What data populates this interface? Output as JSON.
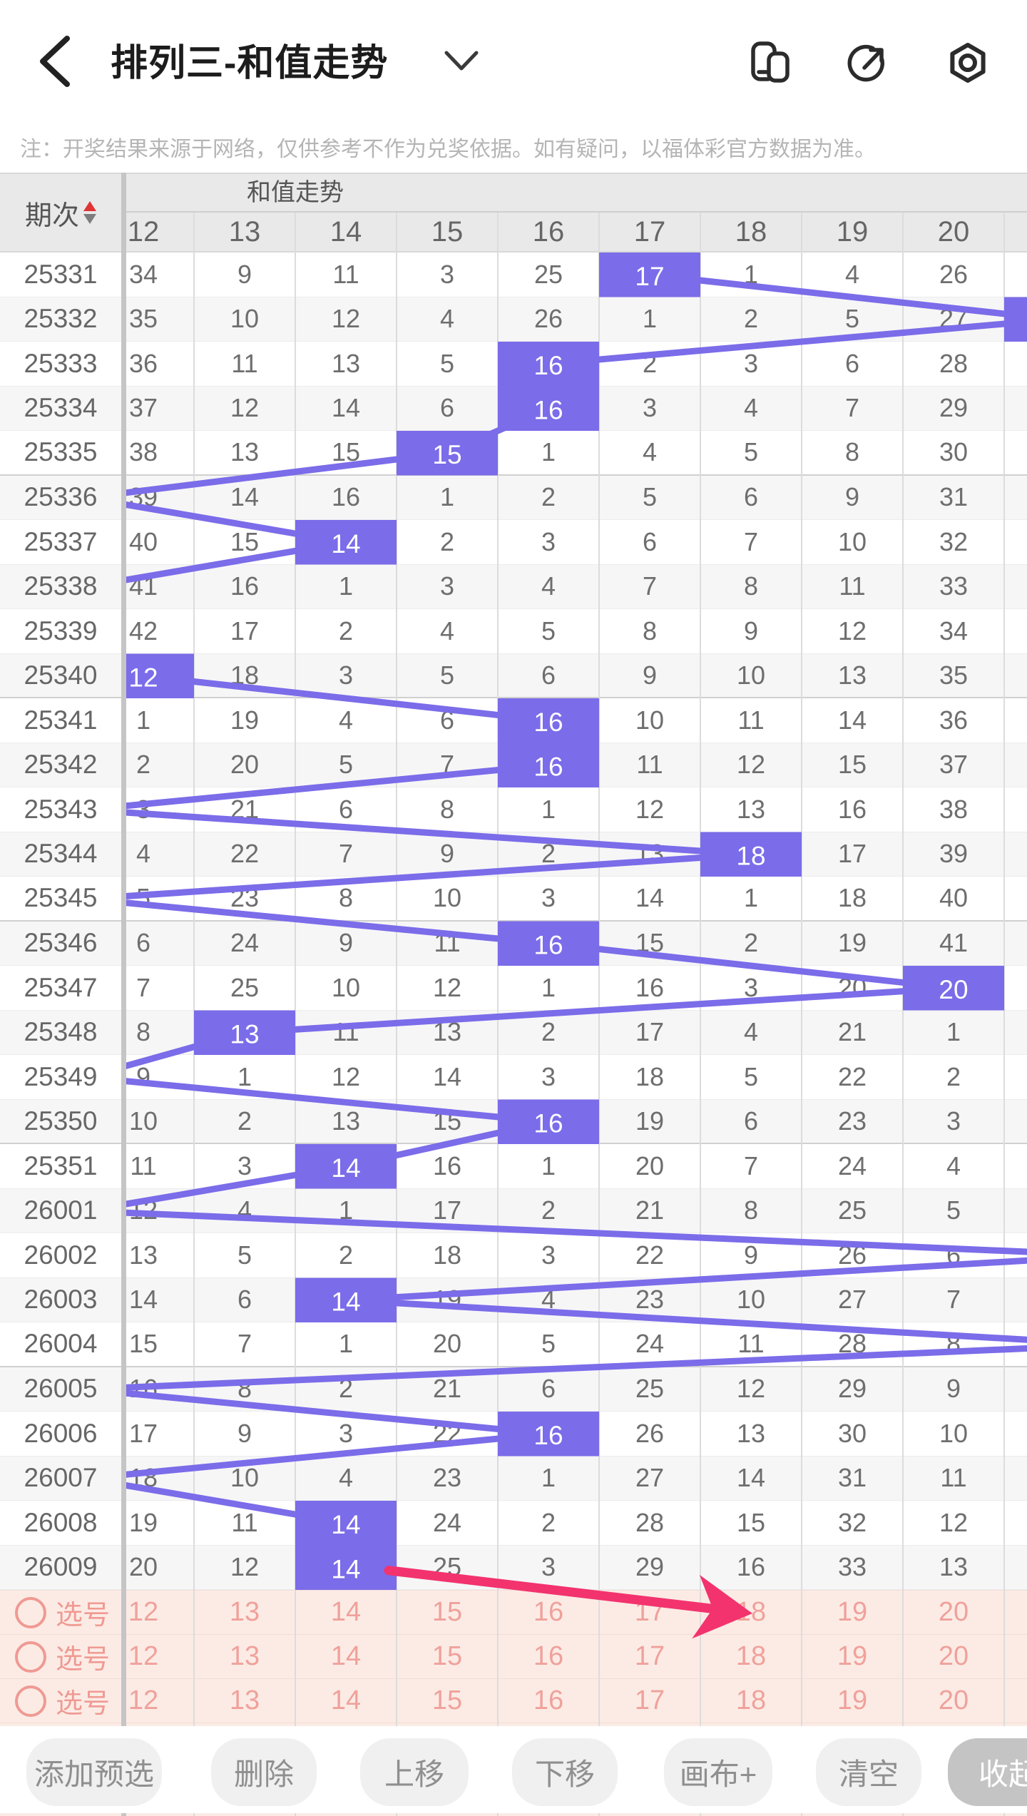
{
  "header": {
    "title": "排列三-和值走势",
    "icons": [
      "back-icon",
      "chevron-down-icon",
      "window-switch-icon",
      "share-icon",
      "settings-icon"
    ]
  },
  "notice": "注：开奖结果来源于网络，仅供参考不作为兑奖依据。如有疑问，以福体彩官方数据为准。",
  "table": {
    "period_label": "期次",
    "trend_label": "和值走势",
    "columns": [
      "12",
      "13",
      "14",
      "15",
      "16",
      "17",
      "18",
      "19",
      "20"
    ],
    "col_start": 12,
    "rows": [
      {
        "period": "25331",
        "cells": [
          34,
          9,
          11,
          3,
          25,
          17,
          1,
          4,
          26
        ],
        "sum": 17
      },
      {
        "period": "25332",
        "cells": [
          35,
          10,
          12,
          4,
          26,
          1,
          2,
          5,
          27
        ],
        "sum": 21
      },
      {
        "period": "25333",
        "cells": [
          36,
          11,
          13,
          5,
          16,
          2,
          3,
          6,
          28
        ],
        "sum": 16
      },
      {
        "period": "25334",
        "cells": [
          37,
          12,
          14,
          6,
          16,
          3,
          4,
          7,
          29
        ],
        "sum": 16
      },
      {
        "period": "25335",
        "cells": [
          38,
          13,
          15,
          15,
          1,
          4,
          5,
          8,
          30
        ],
        "sum": 15
      },
      {
        "period": "25336",
        "cells": [
          39,
          14,
          16,
          1,
          2,
          5,
          6,
          9,
          31
        ],
        "sum": "below-range"
      },
      {
        "period": "25337",
        "cells": [
          40,
          15,
          14,
          2,
          3,
          6,
          7,
          10,
          32
        ],
        "sum": 14
      },
      {
        "period": "25338",
        "cells": [
          41,
          16,
          1,
          3,
          4,
          7,
          8,
          11,
          33
        ],
        "sum": "below-range"
      },
      {
        "period": "25339",
        "cells": [
          42,
          17,
          2,
          4,
          5,
          8,
          9,
          12,
          34
        ],
        "sum": "below-range"
      },
      {
        "period": "25340",
        "cells": [
          12,
          18,
          3,
          5,
          6,
          9,
          10,
          13,
          35
        ],
        "sum": 12
      },
      {
        "period": "25341",
        "cells": [
          1,
          19,
          4,
          6,
          16,
          10,
          11,
          14,
          36
        ],
        "sum": 16
      },
      {
        "period": "25342",
        "cells": [
          2,
          20,
          5,
          7,
          16,
          11,
          12,
          15,
          37
        ],
        "sum": 16
      },
      {
        "period": "25343",
        "cells": [
          3,
          21,
          6,
          8,
          1,
          12,
          13,
          16,
          38
        ],
        "sum": "below-range"
      },
      {
        "period": "25344",
        "cells": [
          4,
          22,
          7,
          9,
          2,
          13,
          18,
          17,
          39
        ],
        "sum": 18
      },
      {
        "period": "25345",
        "cells": [
          5,
          23,
          8,
          10,
          3,
          14,
          1,
          18,
          40
        ],
        "sum": "below-range"
      },
      {
        "period": "25346",
        "cells": [
          6,
          24,
          9,
          11,
          16,
          15,
          2,
          19,
          41
        ],
        "sum": 16
      },
      {
        "period": "25347",
        "cells": [
          7,
          25,
          10,
          12,
          1,
          16,
          3,
          20,
          20
        ],
        "sum": 20
      },
      {
        "period": "25348",
        "cells": [
          8,
          13,
          11,
          13,
          2,
          17,
          4,
          21,
          1
        ],
        "sum": 13
      },
      {
        "period": "25349",
        "cells": [
          9,
          1,
          12,
          14,
          3,
          18,
          5,
          22,
          2
        ],
        "sum": "below-range"
      },
      {
        "period": "25350",
        "cells": [
          10,
          2,
          13,
          15,
          16,
          19,
          6,
          23,
          3
        ],
        "sum": 16
      },
      {
        "period": "25351",
        "cells": [
          11,
          3,
          14,
          16,
          1,
          20,
          7,
          24,
          4
        ],
        "sum": 14
      },
      {
        "period": "26001",
        "cells": [
          12,
          4,
          1,
          17,
          2,
          21,
          8,
          25,
          5
        ],
        "sum": "below-range"
      },
      {
        "period": "26002",
        "cells": [
          13,
          5,
          2,
          18,
          3,
          22,
          9,
          26,
          6
        ],
        "sum": "above-range"
      },
      {
        "period": "26003",
        "cells": [
          14,
          6,
          14,
          19,
          4,
          23,
          10,
          27,
          7
        ],
        "sum": 14
      },
      {
        "period": "26004",
        "cells": [
          15,
          7,
          1,
          20,
          5,
          24,
          11,
          28,
          8
        ],
        "sum": "above-range"
      },
      {
        "period": "26005",
        "cells": [
          16,
          8,
          2,
          21,
          6,
          25,
          12,
          29,
          9
        ],
        "sum": "below-range"
      },
      {
        "period": "26006",
        "cells": [
          17,
          9,
          3,
          22,
          16,
          26,
          13,
          30,
          10
        ],
        "sum": 16
      },
      {
        "period": "26007",
        "cells": [
          18,
          10,
          4,
          23,
          1,
          27,
          14,
          31,
          11
        ],
        "sum": "below-range"
      },
      {
        "period": "26008",
        "cells": [
          19,
          11,
          14,
          24,
          2,
          28,
          15,
          32,
          12
        ],
        "sum": 14
      },
      {
        "period": "26009",
        "cells": [
          20,
          12,
          14,
          25,
          3,
          29,
          16,
          33,
          13
        ],
        "sum": 14
      }
    ]
  },
  "selection_rows": [
    {
      "label": "选号",
      "values": [
        "12",
        "13",
        "14",
        "15",
        "16",
        "17",
        "18",
        "19",
        "20"
      ]
    },
    {
      "label": "选号",
      "values": [
        "12",
        "13",
        "14",
        "15",
        "16",
        "17",
        "18",
        "19",
        "20"
      ]
    },
    {
      "label": "选号",
      "values": [
        "12",
        "13",
        "14",
        "15",
        "16",
        "17",
        "18",
        "19",
        "20"
      ]
    }
  ],
  "annotation_arrow": {
    "start": {
      "period": "26009",
      "column": 14
    },
    "end": {
      "row_label": "选号",
      "column": 18
    }
  },
  "toolbar": {
    "buttons": [
      "添加预选",
      "删除",
      "上移",
      "下移",
      "画布+",
      "清空",
      "收起"
    ]
  },
  "colors": {
    "highlight": "#7b6ce9",
    "arrow": "#f2336e",
    "selection_text": "#ef9a93",
    "selection_bg": "#fcebe5",
    "header_bg": "#e9e9e9",
    "stripe": "#f6f6f7",
    "divider": "#c5c5c5",
    "sort_asc": "#e03434"
  }
}
